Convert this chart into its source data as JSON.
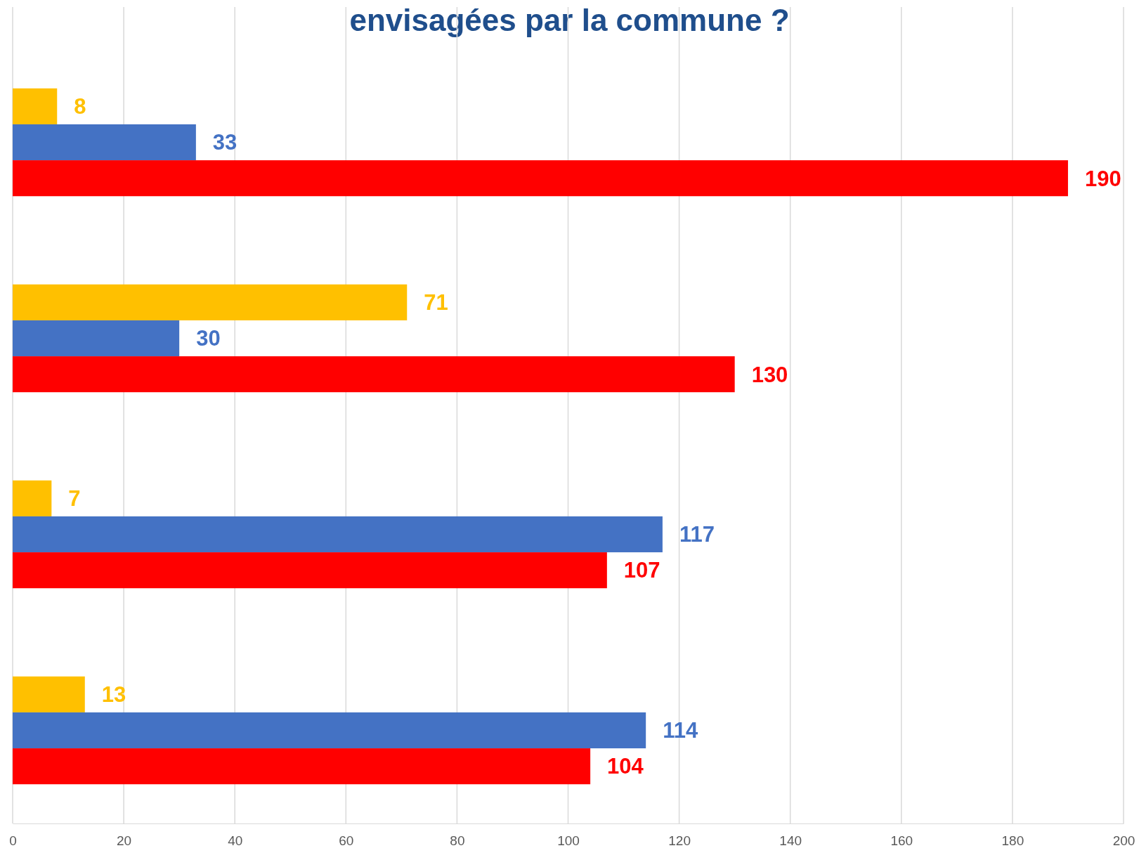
{
  "chart_data": {
    "type": "bar",
    "orientation": "horizontal",
    "title": "envisagées par la commune ?",
    "categories": [
      null,
      null,
      null,
      null
    ],
    "series": [
      {
        "color": "#ffc000",
        "values": [
          8,
          71,
          7,
          13
        ]
      },
      {
        "color": "#4472c4",
        "values": [
          33,
          30,
          117,
          114
        ]
      },
      {
        "color": "#ff0000",
        "values": [
          190,
          130,
          107,
          104
        ]
      }
    ],
    "xlim": [
      0,
      200
    ],
    "xticks": [
      0,
      20,
      40,
      60,
      80,
      100,
      120,
      140,
      160,
      180,
      200
    ],
    "grid": "x",
    "data_labels": true
  }
}
